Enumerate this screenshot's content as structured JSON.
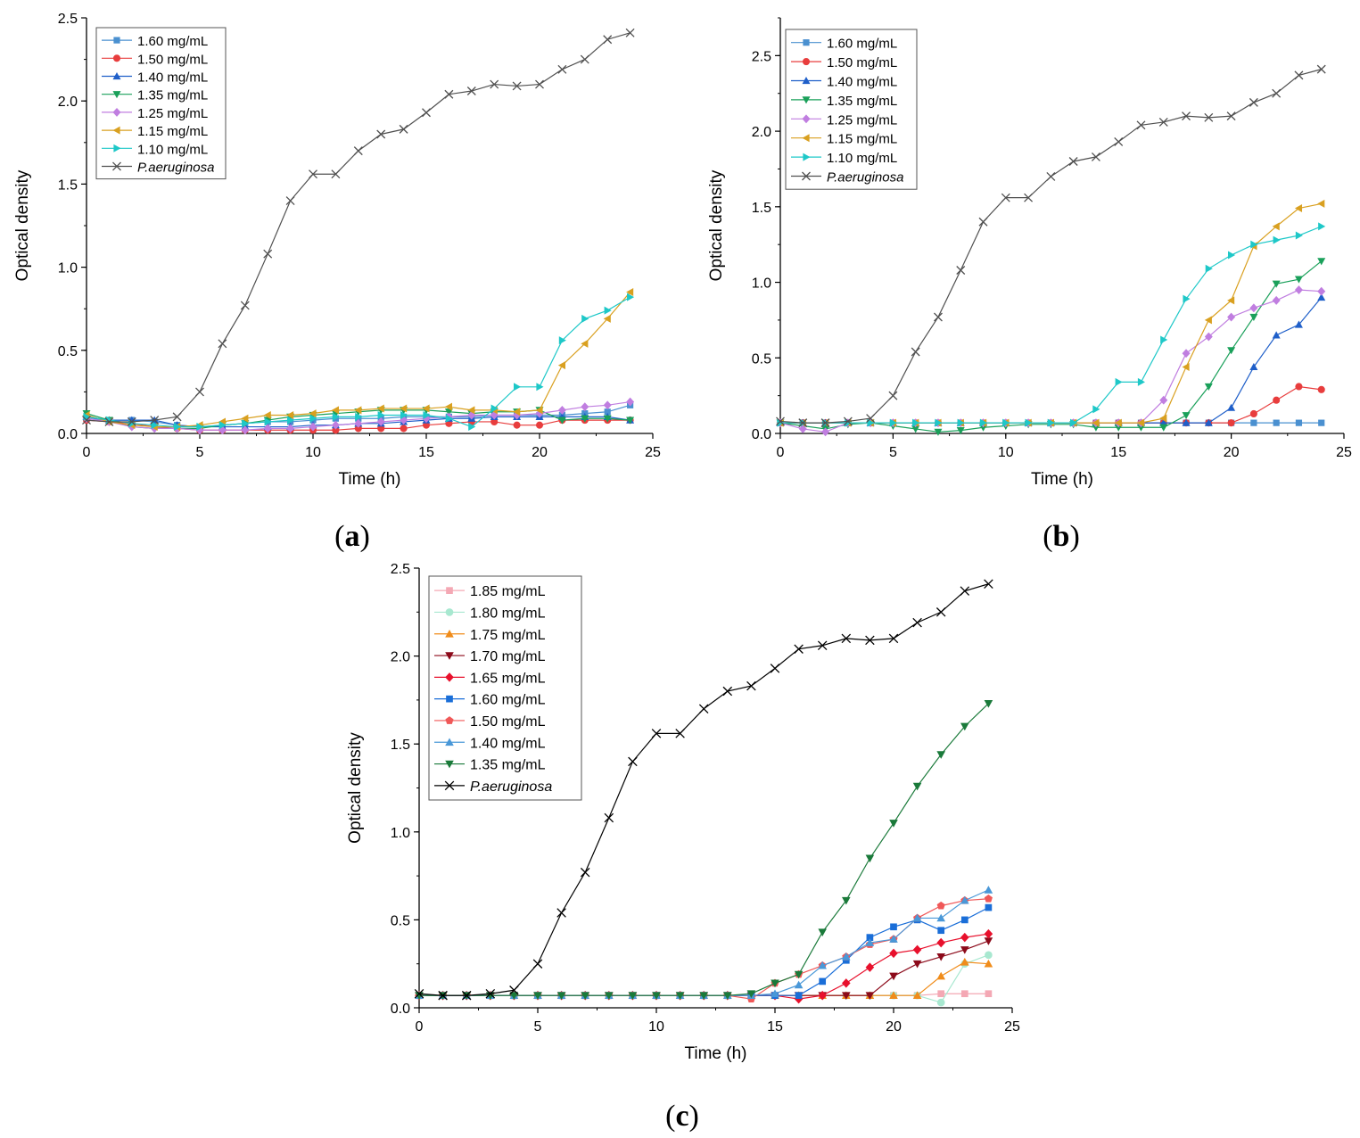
{
  "chart_data": [
    {
      "panel": "(a)",
      "panel_label_parts": [
        "(",
        "a",
        ")"
      ],
      "type": "line",
      "xlabel": "Time (h)",
      "ylabel": "Optical density",
      "xlim": [
        0,
        25
      ],
      "ylim": [
        0,
        2.5
      ],
      "xticks": [
        0,
        5,
        10,
        15,
        20,
        25
      ],
      "yticks": [
        0.0,
        0.5,
        1.0,
        1.5,
        2.0,
        2.5
      ],
      "x": [
        0,
        1,
        2,
        3,
        4,
        5,
        6,
        7,
        8,
        9,
        10,
        11,
        12,
        13,
        14,
        15,
        16,
        17,
        18,
        19,
        20,
        21,
        22,
        23,
        24
      ],
      "legend_position": "top-left",
      "series": [
        {
          "name": "1.60 mg/mL",
          "color": "#4a90d0",
          "marker": "square",
          "values": [
            0.09,
            0.08,
            0.08,
            0.07,
            0.05,
            0.04,
            0.05,
            0.06,
            0.07,
            0.07,
            0.08,
            0.09,
            0.09,
            0.09,
            0.1,
            0.1,
            0.1,
            0.1,
            0.11,
            0.11,
            0.11,
            0.11,
            0.12,
            0.13,
            0.17
          ]
        },
        {
          "name": "1.50 mg/mL",
          "color": "#e83d3d",
          "marker": "circle",
          "values": [
            0.08,
            0.07,
            0.06,
            0.04,
            0.03,
            0.02,
            0.02,
            0.02,
            0.02,
            0.02,
            0.02,
            0.02,
            0.03,
            0.03,
            0.03,
            0.05,
            0.06,
            0.07,
            0.07,
            0.05,
            0.05,
            0.08,
            0.08,
            0.08,
            0.08
          ]
        },
        {
          "name": "1.40 mg/mL",
          "color": "#1f5fc9",
          "marker": "triangle-up",
          "values": [
            0.1,
            0.08,
            0.08,
            0.08,
            0.05,
            0.04,
            0.04,
            0.04,
            0.04,
            0.04,
            0.05,
            0.05,
            0.06,
            0.06,
            0.07,
            0.08,
            0.09,
            0.09,
            0.1,
            0.1,
            0.1,
            0.1,
            0.1,
            0.1,
            0.08
          ]
        },
        {
          "name": "1.35 mg/mL",
          "color": "#1aa05a",
          "marker": "triangle-down",
          "values": [
            0.12,
            0.08,
            0.04,
            0.03,
            0.03,
            0.03,
            0.05,
            0.06,
            0.08,
            0.1,
            0.11,
            0.12,
            0.13,
            0.14,
            0.14,
            0.14,
            0.13,
            0.12,
            0.13,
            0.13,
            0.14,
            0.08,
            0.09,
            0.09,
            0.08
          ]
        },
        {
          "name": "1.25 mg/mL",
          "color": "#c07ee0",
          "marker": "diamond",
          "values": [
            0.09,
            0.07,
            0.04,
            0.03,
            0.03,
            0.02,
            0.02,
            0.02,
            0.03,
            0.03,
            0.04,
            0.05,
            0.06,
            0.07,
            0.08,
            0.09,
            0.1,
            0.11,
            0.11,
            0.11,
            0.12,
            0.14,
            0.16,
            0.17,
            0.19
          ]
        },
        {
          "name": "1.15 mg/mL",
          "color": "#d9a020",
          "marker": "triangle-left",
          "values": [
            0.11,
            0.07,
            0.05,
            0.04,
            0.04,
            0.05,
            0.07,
            0.09,
            0.11,
            0.11,
            0.12,
            0.14,
            0.14,
            0.15,
            0.15,
            0.15,
            0.16,
            0.14,
            0.14,
            0.13,
            0.14,
            0.41,
            0.54,
            0.69,
            0.85
          ]
        },
        {
          "name": "1.10 mg/mL",
          "color": "#1ec8c8",
          "marker": "triangle-right",
          "values": [
            0.1,
            0.08,
            0.06,
            0.05,
            0.04,
            0.04,
            0.05,
            0.06,
            0.07,
            0.08,
            0.09,
            0.1,
            0.1,
            0.11,
            0.11,
            0.11,
            0.09,
            0.04,
            0.15,
            0.28,
            0.28,
            0.56,
            0.69,
            0.74,
            0.82
          ]
        },
        {
          "name": "P.aeruginosa",
          "italic": true,
          "color": "#505050",
          "marker": "x",
          "values": [
            0.08,
            0.07,
            0.07,
            0.08,
            0.1,
            0.25,
            0.54,
            0.77,
            1.08,
            1.4,
            1.56,
            1.56,
            1.7,
            1.8,
            1.83,
            1.93,
            2.04,
            2.06,
            2.1,
            2.09,
            2.1,
            2.19,
            2.25,
            2.37,
            2.41
          ]
        }
      ]
    },
    {
      "panel": "(b)",
      "panel_label_parts": [
        "(",
        "b",
        ")"
      ],
      "type": "line",
      "xlabel": "Time (h)",
      "ylabel": "Optical density",
      "xlim": [
        0,
        25
      ],
      "ylim": [
        0,
        2.75
      ],
      "xticks": [
        0,
        5,
        10,
        15,
        20,
        25
      ],
      "yticks": [
        0.0,
        0.5,
        1.0,
        1.5,
        2.0,
        2.5
      ],
      "x": [
        0,
        1,
        2,
        3,
        4,
        5,
        6,
        7,
        8,
        9,
        10,
        11,
        12,
        13,
        14,
        15,
        16,
        17,
        18,
        19,
        20,
        21,
        22,
        23,
        24
      ],
      "legend_position": "top-left",
      "series": [
        {
          "name": "1.60 mg/mL",
          "color": "#4a90d0",
          "marker": "square",
          "values": [
            0.07,
            0.07,
            0.07,
            0.07,
            0.07,
            0.07,
            0.07,
            0.07,
            0.07,
            0.07,
            0.07,
            0.07,
            0.07,
            0.07,
            0.07,
            0.07,
            0.07,
            0.07,
            0.07,
            0.07,
            0.07,
            0.07,
            0.07,
            0.07,
            0.07
          ]
        },
        {
          "name": "1.50 mg/mL",
          "color": "#e83d3d",
          "marker": "circle",
          "values": [
            0.07,
            0.07,
            0.07,
            0.07,
            0.07,
            0.07,
            0.07,
            0.07,
            0.07,
            0.07,
            0.07,
            0.07,
            0.07,
            0.07,
            0.07,
            0.07,
            0.07,
            0.07,
            0.07,
            0.07,
            0.07,
            0.13,
            0.22,
            0.31,
            0.29
          ]
        },
        {
          "name": "1.40 mg/mL",
          "color": "#1f5fc9",
          "marker": "triangle-up",
          "values": [
            0.07,
            0.07,
            0.07,
            0.07,
            0.07,
            0.07,
            0.07,
            0.07,
            0.07,
            0.07,
            0.07,
            0.07,
            0.07,
            0.07,
            0.07,
            0.07,
            0.07,
            0.07,
            0.07,
            0.07,
            0.17,
            0.44,
            0.65,
            0.72,
            0.9
          ]
        },
        {
          "name": "1.35 mg/mL",
          "color": "#1aa05a",
          "marker": "triangle-down",
          "values": [
            0.07,
            0.05,
            0.03,
            0.06,
            0.07,
            0.05,
            0.03,
            0.01,
            0.02,
            0.04,
            0.05,
            0.06,
            0.06,
            0.06,
            0.04,
            0.04,
            0.04,
            0.04,
            0.12,
            0.31,
            0.55,
            0.77,
            0.99,
            1.02,
            1.14
          ]
        },
        {
          "name": "1.25 mg/mL",
          "color": "#c07ee0",
          "marker": "diamond",
          "values": [
            0.07,
            0.03,
            0.01,
            0.07,
            0.07,
            0.07,
            0.07,
            0.07,
            0.07,
            0.07,
            0.07,
            0.07,
            0.07,
            0.07,
            0.07,
            0.07,
            0.07,
            0.22,
            0.53,
            0.64,
            0.77,
            0.83,
            0.88,
            0.95,
            0.94
          ]
        },
        {
          "name": "1.15 mg/mL",
          "color": "#d9a020",
          "marker": "triangle-left",
          "values": [
            0.07,
            0.07,
            0.07,
            0.07,
            0.07,
            0.07,
            0.07,
            0.07,
            0.07,
            0.07,
            0.07,
            0.07,
            0.07,
            0.07,
            0.07,
            0.07,
            0.07,
            0.1,
            0.44,
            0.75,
            0.88,
            1.24,
            1.37,
            1.49,
            1.52
          ]
        },
        {
          "name": "1.10 mg/mL",
          "color": "#1ec8c8",
          "marker": "triangle-right",
          "values": [
            0.07,
            0.07,
            0.07,
            0.07,
            0.07,
            0.07,
            0.07,
            0.07,
            0.07,
            0.07,
            0.07,
            0.07,
            0.07,
            0.07,
            0.16,
            0.34,
            0.34,
            0.62,
            0.89,
            1.09,
            1.18,
            1.25,
            1.28,
            1.31,
            1.37
          ]
        },
        {
          "name": "P.aeruginosa",
          "italic": true,
          "color": "#505050",
          "marker": "x",
          "values": [
            0.08,
            0.07,
            0.07,
            0.08,
            0.1,
            0.25,
            0.54,
            0.77,
            1.08,
            1.4,
            1.56,
            1.56,
            1.7,
            1.8,
            1.83,
            1.93,
            2.04,
            2.06,
            2.1,
            2.09,
            2.1,
            2.19,
            2.25,
            2.37,
            2.41
          ]
        }
      ]
    },
    {
      "panel": "(c)",
      "panel_label_parts": [
        "(",
        "c",
        ")"
      ],
      "type": "line",
      "xlabel": "Time (h)",
      "ylabel": "Optical density",
      "xlim": [
        0,
        25
      ],
      "ylim": [
        0,
        2.5
      ],
      "xticks": [
        0,
        5,
        10,
        15,
        20,
        25
      ],
      "yticks": [
        0.0,
        0.5,
        1.0,
        1.5,
        2.0,
        2.5
      ],
      "x": [
        0,
        1,
        2,
        3,
        4,
        5,
        6,
        7,
        8,
        9,
        10,
        11,
        12,
        13,
        14,
        15,
        16,
        17,
        18,
        19,
        20,
        21,
        22,
        23,
        24
      ],
      "legend_position": "top-left",
      "series": [
        {
          "name": "1.85 mg/mL",
          "color": "#f4a8b4",
          "marker": "square",
          "values": [
            0.07,
            0.07,
            0.07,
            0.07,
            0.07,
            0.07,
            0.07,
            0.07,
            0.07,
            0.07,
            0.07,
            0.07,
            0.07,
            0.07,
            0.07,
            0.07,
            0.07,
            0.07,
            0.07,
            0.07,
            0.07,
            0.07,
            0.08,
            0.08,
            0.08
          ]
        },
        {
          "name": "1.80 mg/mL",
          "color": "#a8e8d0",
          "marker": "circle",
          "values": [
            0.07,
            0.07,
            0.07,
            0.07,
            0.07,
            0.07,
            0.07,
            0.07,
            0.07,
            0.07,
            0.07,
            0.07,
            0.07,
            0.07,
            0.07,
            0.07,
            0.07,
            0.07,
            0.07,
            0.07,
            0.07,
            0.07,
            0.03,
            0.25,
            0.3
          ]
        },
        {
          "name": "1.75 mg/mL",
          "color": "#f08c1a",
          "marker": "triangle-up",
          "values": [
            0.07,
            0.07,
            0.07,
            0.07,
            0.07,
            0.07,
            0.07,
            0.07,
            0.07,
            0.07,
            0.07,
            0.07,
            0.07,
            0.07,
            0.07,
            0.07,
            0.07,
            0.07,
            0.07,
            0.07,
            0.07,
            0.07,
            0.18,
            0.26,
            0.25
          ]
        },
        {
          "name": "1.70 mg/mL",
          "color": "#8c0a1a",
          "marker": "triangle-down",
          "values": [
            0.07,
            0.07,
            0.07,
            0.07,
            0.07,
            0.07,
            0.07,
            0.07,
            0.07,
            0.07,
            0.07,
            0.07,
            0.07,
            0.07,
            0.07,
            0.07,
            0.07,
            0.07,
            0.07,
            0.07,
            0.18,
            0.25,
            0.29,
            0.33,
            0.38
          ]
        },
        {
          "name": "1.65 mg/mL",
          "color": "#e8102c",
          "marker": "diamond",
          "values": [
            0.07,
            0.07,
            0.07,
            0.07,
            0.07,
            0.07,
            0.07,
            0.07,
            0.07,
            0.07,
            0.07,
            0.07,
            0.07,
            0.07,
            0.07,
            0.07,
            0.05,
            0.07,
            0.14,
            0.23,
            0.31,
            0.33,
            0.37,
            0.4,
            0.42
          ]
        },
        {
          "name": "1.60 mg/mL",
          "color": "#1a6ed8",
          "marker": "square",
          "values": [
            0.07,
            0.07,
            0.07,
            0.07,
            0.07,
            0.07,
            0.07,
            0.07,
            0.07,
            0.07,
            0.07,
            0.07,
            0.07,
            0.07,
            0.07,
            0.07,
            0.07,
            0.15,
            0.27,
            0.4,
            0.46,
            0.5,
            0.44,
            0.5,
            0.57
          ]
        },
        {
          "name": "1.50 mg/mL",
          "color": "#f05858",
          "marker": "pentagon",
          "values": [
            0.07,
            0.07,
            0.07,
            0.07,
            0.07,
            0.07,
            0.07,
            0.07,
            0.07,
            0.07,
            0.07,
            0.07,
            0.07,
            0.07,
            0.05,
            0.14,
            0.19,
            0.24,
            0.29,
            0.36,
            0.39,
            0.51,
            0.58,
            0.61,
            0.62
          ]
        },
        {
          "name": "1.40 mg/mL",
          "color": "#4a98d8",
          "marker": "triangle-up",
          "values": [
            0.07,
            0.07,
            0.07,
            0.07,
            0.07,
            0.07,
            0.07,
            0.07,
            0.07,
            0.07,
            0.07,
            0.07,
            0.07,
            0.07,
            0.07,
            0.08,
            0.13,
            0.24,
            0.29,
            0.37,
            0.39,
            0.51,
            0.51,
            0.61,
            0.67
          ]
        },
        {
          "name": "1.35 mg/mL",
          "color": "#1a7a3a",
          "marker": "triangle-down",
          "values": [
            0.07,
            0.07,
            0.07,
            0.07,
            0.07,
            0.07,
            0.07,
            0.07,
            0.07,
            0.07,
            0.07,
            0.07,
            0.07,
            0.07,
            0.08,
            0.14,
            0.19,
            0.43,
            0.61,
            0.85,
            1.05,
            1.26,
            1.44,
            1.6,
            1.73
          ]
        },
        {
          "name": "P.aeruginosa",
          "italic": true,
          "color": "#000000",
          "marker": "x",
          "values": [
            0.08,
            0.07,
            0.07,
            0.08,
            0.1,
            0.25,
            0.54,
            0.77,
            1.08,
            1.4,
            1.56,
            1.56,
            1.7,
            1.8,
            1.83,
            1.93,
            2.04,
            2.06,
            2.1,
            2.09,
            2.1,
            2.19,
            2.25,
            2.37,
            2.41
          ]
        }
      ]
    }
  ]
}
